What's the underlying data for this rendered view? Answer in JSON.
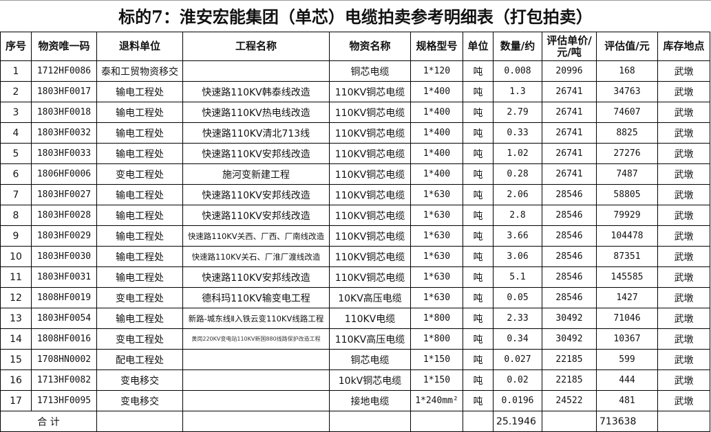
{
  "title": "标的7：淮安宏能集团（单芯）电缆拍卖参考明细表（打包拍卖）",
  "headers": [
    "序号",
    "物资唯一码",
    "退料单位",
    "工程名称",
    "物资名称",
    "规格型号",
    "单位",
    "数量/约",
    "评估单价/元/吨",
    "评估值/元",
    "库存地点"
  ],
  "rows": [
    [
      "1",
      "1712HF0086",
      "泰和工贸物资移交",
      "",
      "铜芯电缆",
      "1*120",
      "吨",
      "0.008",
      "20996",
      "168",
      "武墩"
    ],
    [
      "2",
      "1803HF0017",
      "输电工程处",
      "快速路110KV韩泰线改造",
      "110KV铜芯电缆",
      "1*400",
      "吨",
      "1.3",
      "26741",
      "34763",
      "武墩"
    ],
    [
      "3",
      "1803HF0018",
      "输电工程处",
      "快速路110KV热电线改造",
      "110KV铜芯电缆",
      "1*400",
      "吨",
      "2.79",
      "26741",
      "74607",
      "武墩"
    ],
    [
      "4",
      "1803HF0032",
      "输电工程处",
      "快速路110KV清北713线",
      "110KV铜芯电缆",
      "1*400",
      "吨",
      "0.33",
      "26741",
      "8825",
      "武墩"
    ],
    [
      "5",
      "1803HF0033",
      "输电工程处",
      "快速路110KV安邦线改造",
      "110KV铜芯电缆",
      "1*400",
      "吨",
      "1.02",
      "26741",
      "27276",
      "武墩"
    ],
    [
      "6",
      "1806HF0006",
      "变电工程处",
      "施河变新建工程",
      "110KV铜芯电缆",
      "1*400",
      "吨",
      "0.28",
      "26741",
      "7487",
      "武墩"
    ],
    [
      "7",
      "1803HF0027",
      "输电工程处",
      "快速路110KV安邦线改造",
      "110KV铜芯电缆",
      "1*630",
      "吨",
      "2.06",
      "28546",
      "58805",
      "武墩"
    ],
    [
      "8",
      "1803HF0028",
      "输电工程处",
      "快速路110KV安邦线改造",
      "110KV铜芯电缆",
      "1*630",
      "吨",
      "2.8",
      "28546",
      "79929",
      "武墩"
    ],
    [
      "9",
      "1803HF0029",
      "输电工程处",
      "快速路110KV关西、厂西、厂南线改造",
      "110KV铜芯电缆",
      "1*630",
      "吨",
      "3.66",
      "28546",
      "104478",
      "武墩"
    ],
    [
      "10",
      "1803HF0030",
      "输电工程处",
      "快速路110KV关石、厂淮厂渡线改造",
      "110KV铜芯电缆",
      "1*630",
      "吨",
      "3.06",
      "28546",
      "87351",
      "武墩"
    ],
    [
      "11",
      "1803HF0031",
      "输电工程处",
      "快速路110KV安邦线改造",
      "110KV铜芯电缆",
      "1*630",
      "吨",
      "5.1",
      "28546",
      "145585",
      "武墩"
    ],
    [
      "12",
      "1808HF0019",
      "变电工程处",
      "德科玛110KV输变电工程",
      "10KV高压电缆",
      "1*630",
      "吨",
      "0.05",
      "28546",
      "1427",
      "武墩"
    ],
    [
      "13",
      "1803HF0054",
      "输电工程处",
      "新路-城东线Ⅱ入铁云变110KV线路工程",
      "110KV电缆",
      "1*800",
      "吨",
      "2.33",
      "30492",
      "71046",
      "武墩"
    ],
    [
      "14",
      "1808HF0016",
      "变电工程处",
      "黄岗220KV变电站110KV新国880线路保护改造工程",
      "110KV高压电缆",
      "1*800",
      "吨",
      "0.34",
      "30492",
      "10367",
      "武墩"
    ],
    [
      "15",
      "1708HN0002",
      "配电工程处",
      "",
      "铜芯电缆",
      "1*150",
      "吨",
      "0.027",
      "22185",
      "599",
      "武墩"
    ],
    [
      "16",
      "1713HF0082",
      "变电移交",
      "",
      "10kV铜芯电缆",
      "1*150",
      "吨",
      "0.02",
      "22185",
      "444",
      "武墩"
    ],
    [
      "17",
      "1713HF0095",
      "变电移交",
      "",
      "接地电缆",
      "1*240mm²",
      "吨",
      "0.0196",
      "24522",
      "481",
      "武墩"
    ]
  ],
  "total": {
    "label": "合  计",
    "quantity": "25.1946",
    "value": "713638"
  }
}
